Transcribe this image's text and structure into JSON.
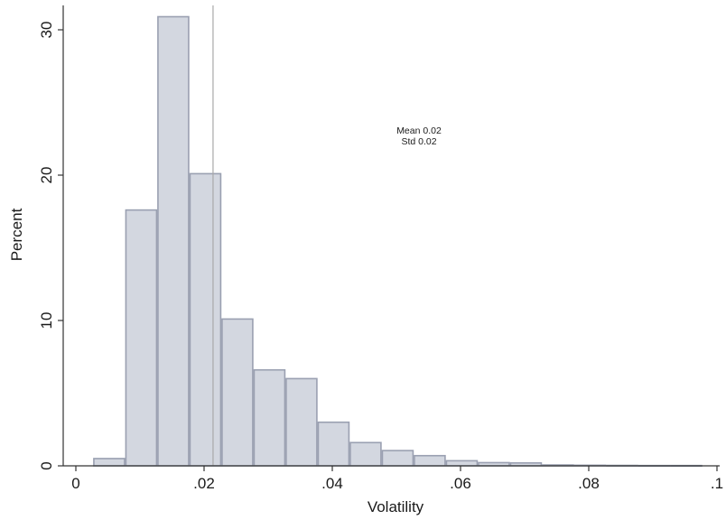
{
  "chart_data": {
    "type": "bar",
    "subtype": "histogram",
    "xlabel": "Volatility",
    "ylabel": "Percent",
    "xlim": [
      0,
      0.1
    ],
    "ylim": [
      0,
      32
    ],
    "xticks": [
      {
        "value": 0,
        "label": "0"
      },
      {
        "value": 0.02,
        "label": ".02"
      },
      {
        "value": 0.04,
        "label": ".04"
      },
      {
        "value": 0.06,
        "label": ".06"
      },
      {
        "value": 0.08,
        "label": ".08"
      },
      {
        "value": 0.1,
        "label": ".1"
      }
    ],
    "yticks": [
      {
        "value": 0,
        "label": "0"
      },
      {
        "value": 10,
        "label": "10"
      },
      {
        "value": 20,
        "label": "20"
      },
      {
        "value": 30,
        "label": "30"
      }
    ],
    "bin_edges": [
      0.0027,
      0.0077,
      0.0127,
      0.0177,
      0.0227,
      0.0277,
      0.0327,
      0.0377,
      0.0427,
      0.0477,
      0.0527,
      0.0577,
      0.0627,
      0.0677,
      0.0727,
      0.0777,
      0.0827,
      0.0877,
      0.0927,
      0.0977
    ],
    "values": [
      0.5,
      17.6,
      30.9,
      20.1,
      10.1,
      6.6,
      6.0,
      3.0,
      1.6,
      1.05,
      0.7,
      0.35,
      0.22,
      0.2,
      0.06,
      0.04,
      0.03,
      0.02,
      0.02
    ],
    "mean_line": 0.0214,
    "annotation": [
      "Mean 0.02",
      "Std 0.02"
    ],
    "grid": false,
    "colors": {
      "bar_fill": "#d3d7e0",
      "bar_stroke": "#9aa0b1",
      "mean_line": "#a9a9a9",
      "axis": "#333333"
    }
  }
}
